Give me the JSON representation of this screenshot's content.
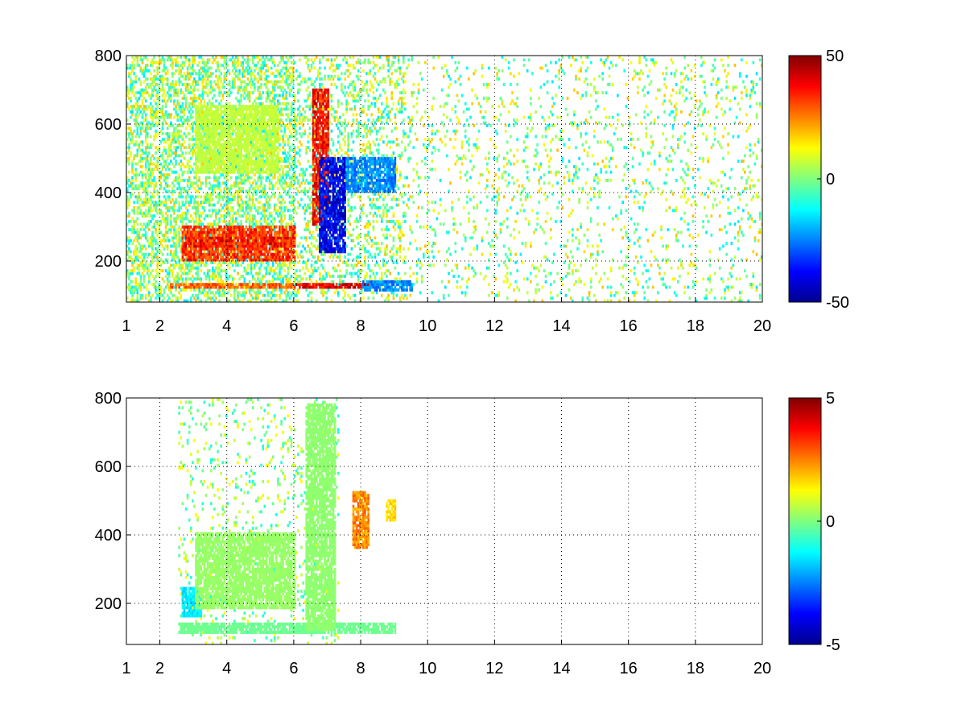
{
  "chart_data": [
    {
      "type": "heatmap",
      "title": "",
      "xlabel": "",
      "ylabel": "",
      "xlim": [
        1,
        20
      ],
      "ylim": [
        80,
        800
      ],
      "xticks": [
        "1",
        "2",
        "4",
        "6",
        "8",
        "10",
        "12",
        "14",
        "16",
        "18",
        "20"
      ],
      "xtick_values": [
        1,
        2,
        4,
        6,
        8,
        10,
        12,
        14,
        16,
        18,
        20
      ],
      "yticks": [
        "200",
        "400",
        "600",
        "800"
      ],
      "ytick_values": [
        200,
        400,
        600,
        800
      ],
      "grid": true,
      "colormap": "jet",
      "colorbar": {
        "min": -50,
        "max": 50,
        "labels": [
          "50",
          "0",
          "-50"
        ],
        "label_values": [
          50,
          0,
          -50
        ]
      },
      "features": [
        {
          "x": [
            2.6,
            6.0
          ],
          "y": [
            200,
            300
          ],
          "value": 40
        },
        {
          "x": [
            2.7,
            6.0
          ],
          "y": [
            240,
            270
          ],
          "value": 45
        },
        {
          "x": [
            2.3,
            6.0
          ],
          "y": [
            120,
            130
          ],
          "value": 35
        },
        {
          "x": [
            6.0,
            8.5
          ],
          "y": [
            115,
            130
          ],
          "value": 50
        },
        {
          "x": [
            6.5,
            7.0
          ],
          "y": [
            300,
            700
          ],
          "value": 45
        },
        {
          "x": [
            6.7,
            7.5
          ],
          "y": [
            220,
            500
          ],
          "value": -48
        },
        {
          "x": [
            7.5,
            9.0
          ],
          "y": [
            400,
            500
          ],
          "value": -30
        },
        {
          "x": [
            3.0,
            5.5
          ],
          "y": [
            450,
            650
          ],
          "value": 8
        },
        {
          "x": [
            8.0,
            9.5
          ],
          "y": [
            110,
            140
          ],
          "value": -30
        }
      ]
    },
    {
      "type": "heatmap",
      "title": "",
      "xlabel": "",
      "ylabel": "",
      "xlim": [
        1,
        20
      ],
      "ylim": [
        80,
        800
      ],
      "xticks": [
        "1",
        "2",
        "4",
        "6",
        "8",
        "10",
        "12",
        "14",
        "16",
        "18",
        "20"
      ],
      "xtick_values": [
        1,
        2,
        4,
        6,
        8,
        10,
        12,
        14,
        16,
        18,
        20
      ],
      "yticks": [
        "200",
        "400",
        "600",
        "800"
      ],
      "ytick_values": [
        200,
        400,
        600,
        800
      ],
      "grid": true,
      "colormap": "jet",
      "colorbar": {
        "min": -5,
        "max": 5,
        "labels": [
          "5",
          "0",
          "-5"
        ],
        "label_values": [
          5,
          0,
          -5
        ]
      },
      "features": [
        {
          "x": [
            2.6,
            3.2
          ],
          "y": [
            160,
            240
          ],
          "value": -1.8
        },
        {
          "x": [
            3.0,
            6.0
          ],
          "y": [
            180,
            400
          ],
          "value": 0.3
        },
        {
          "x": [
            2.5,
            9.0
          ],
          "y": [
            110,
            140
          ],
          "value": -0.2
        },
        {
          "x": [
            6.3,
            7.2
          ],
          "y": [
            120,
            780
          ],
          "value": 0.2
        },
        {
          "x": [
            7.7,
            8.2
          ],
          "y": [
            360,
            520
          ],
          "value": 3.0
        },
        {
          "x": [
            8.7,
            9.0
          ],
          "y": [
            440,
            500
          ],
          "value": 2.0
        }
      ]
    }
  ]
}
